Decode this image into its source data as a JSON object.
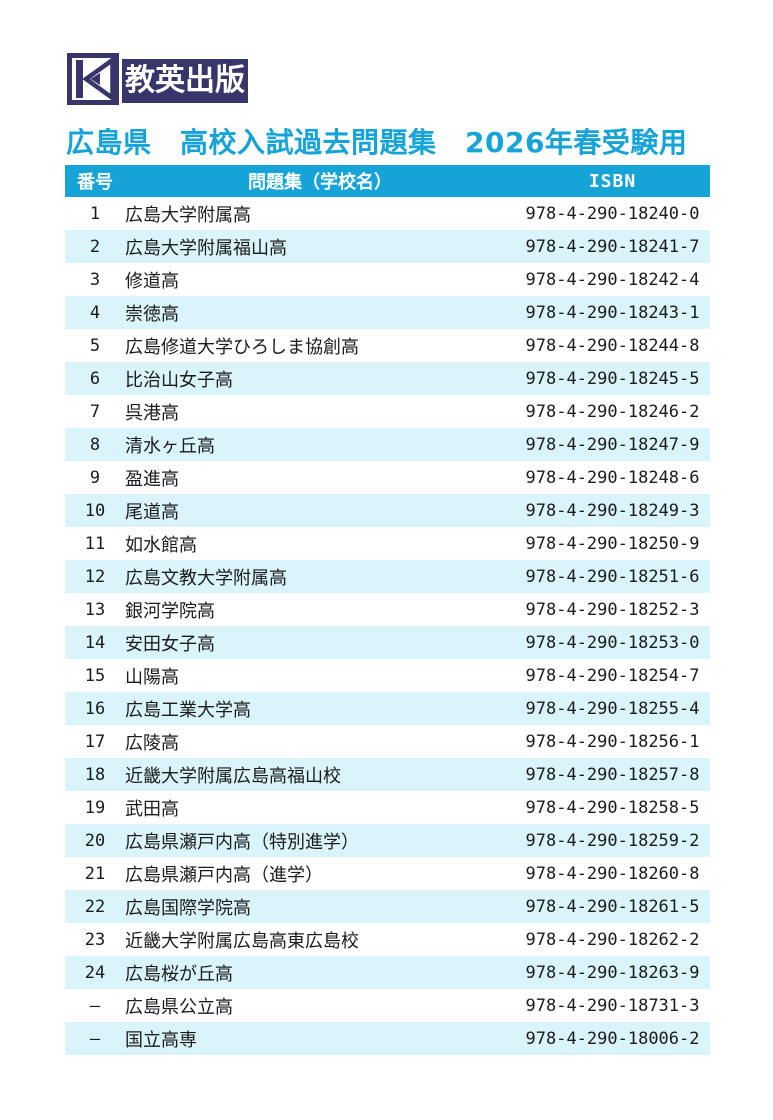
{
  "logo": {
    "publisher": "教英出版",
    "mark_icon": "k-mark-icon"
  },
  "title": "広島県　高校入試過去問題集　2026年春受験用",
  "colors": {
    "accent_cyan": "#16a4d8",
    "stripe_blue": "#d9f4fb",
    "logo_navy": "#37356a",
    "text_dark": "#1b1b1b"
  },
  "table": {
    "headers": [
      "番号",
      "問題集（学校名）",
      "ISBN"
    ],
    "rows": [
      {
        "no": "1",
        "name": "広島大学附属高",
        "isbn": "978-4-290-18240-0"
      },
      {
        "no": "2",
        "name": "広島大学附属福山高",
        "isbn": "978-4-290-18241-7"
      },
      {
        "no": "3",
        "name": "修道高",
        "isbn": "978-4-290-18242-4"
      },
      {
        "no": "4",
        "name": "崇徳高",
        "isbn": "978-4-290-18243-1"
      },
      {
        "no": "5",
        "name": "広島修道大学ひろしま協創高",
        "isbn": "978-4-290-18244-8"
      },
      {
        "no": "6",
        "name": "比治山女子高",
        "isbn": "978-4-290-18245-5"
      },
      {
        "no": "7",
        "name": "呉港高",
        "isbn": "978-4-290-18246-2"
      },
      {
        "no": "8",
        "name": "清水ヶ丘高",
        "isbn": "978-4-290-18247-9"
      },
      {
        "no": "9",
        "name": "盈進高",
        "isbn": "978-4-290-18248-6"
      },
      {
        "no": "10",
        "name": "尾道高",
        "isbn": "978-4-290-18249-3"
      },
      {
        "no": "11",
        "name": "如水館高",
        "isbn": "978-4-290-18250-9"
      },
      {
        "no": "12",
        "name": "広島文教大学附属高",
        "isbn": "978-4-290-18251-6"
      },
      {
        "no": "13",
        "name": "銀河学院高",
        "isbn": "978-4-290-18252-3"
      },
      {
        "no": "14",
        "name": "安田女子高",
        "isbn": "978-4-290-18253-0"
      },
      {
        "no": "15",
        "name": "山陽高",
        "isbn": "978-4-290-18254-7"
      },
      {
        "no": "16",
        "name": "広島工業大学高",
        "isbn": "978-4-290-18255-4"
      },
      {
        "no": "17",
        "name": "広陵高",
        "isbn": "978-4-290-18256-1"
      },
      {
        "no": "18",
        "name": "近畿大学附属広島高福山校",
        "isbn": "978-4-290-18257-8"
      },
      {
        "no": "19",
        "name": "武田高",
        "isbn": "978-4-290-18258-5"
      },
      {
        "no": "20",
        "name": "広島県瀬戸内高（特別進学）",
        "isbn": "978-4-290-18259-2"
      },
      {
        "no": "21",
        "name": "広島県瀬戸内高（進学）",
        "isbn": "978-4-290-18260-8"
      },
      {
        "no": "22",
        "name": "広島国際学院高",
        "isbn": "978-4-290-18261-5"
      },
      {
        "no": "23",
        "name": "近畿大学附属広島高東広島校",
        "isbn": "978-4-290-18262-2"
      },
      {
        "no": "24",
        "name": "広島桜が丘高",
        "isbn": "978-4-290-18263-9"
      },
      {
        "no": "—",
        "name": "広島県公立高",
        "isbn": "978-4-290-18731-3"
      },
      {
        "no": "—",
        "name": "国立高専",
        "isbn": "978-4-290-18006-2"
      }
    ]
  }
}
